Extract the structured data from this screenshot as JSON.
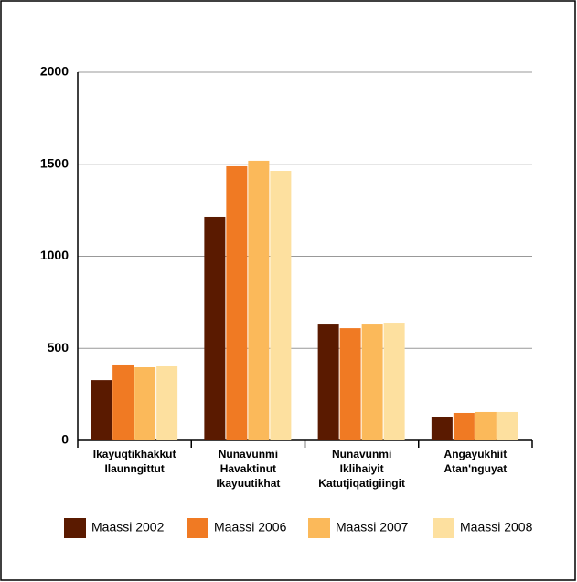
{
  "chart_data": {
    "type": "bar",
    "categories": [
      [
        "Ikayuqtikhakkut",
        "Ilaunngittut"
      ],
      [
        "Nunavunmi",
        "Havaktinut",
        "Ikayuutikhat"
      ],
      [
        "Nunavunmi",
        "Iklihaiyit",
        "Katutjiqatigiingit"
      ],
      [
        "Angayukhiit",
        "Atan'nguyat"
      ]
    ],
    "series": [
      {
        "name": "Maassi 2002",
        "color": "#5a1a00",
        "values": [
          327,
          1216,
          630,
          129
        ]
      },
      {
        "name": "Maassi 2006",
        "color": "#f07a23",
        "values": [
          412,
          1489,
          610,
          149
        ]
      },
      {
        "name": "Maassi 2007",
        "color": "#fbb95a",
        "values": [
          397,
          1519,
          630,
          154
        ]
      },
      {
        "name": "Maassi 2008",
        "color": "#fde09f",
        "values": [
          402,
          1464,
          635,
          154
        ]
      }
    ],
    "ylim": [
      0,
      2000
    ],
    "yticks": [
      0,
      500,
      1000,
      1500,
      2000
    ],
    "grid": true,
    "legend": "bottom"
  }
}
